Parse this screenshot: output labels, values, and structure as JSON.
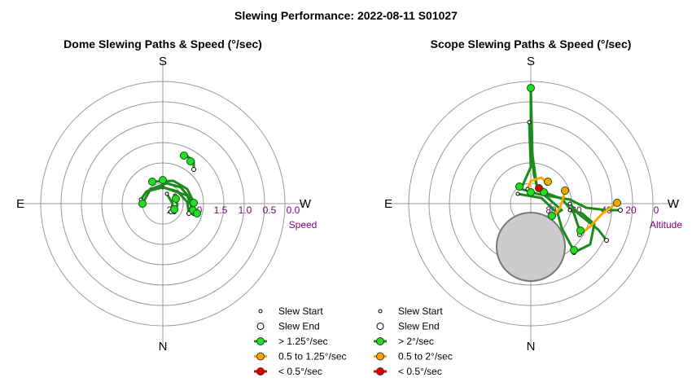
{
  "title": "Slewing Performance: 2022-08-11 S01027",
  "colors": {
    "fast": "#1a8a1a",
    "fast_marker": "#22dd22",
    "medium": "#ffa500",
    "slow": "#dd0000",
    "grid": "#999999",
    "radial_label": "#800080",
    "exclusion": "#cccccc"
  },
  "chart_data": [
    {
      "type": "polar-path",
      "subtitle": "Dome Slewing Paths & Speed (°/sec)",
      "directions": {
        "top": "S",
        "bottom": "N",
        "left": "E",
        "right": "W"
      },
      "radial_ticks": [
        "2",
        "2.0",
        "1.5",
        "1.0",
        "0.5",
        "0.0"
      ],
      "radial_axis_label": "Speed",
      "legend": [
        {
          "label": "Slew Start",
          "symbol": "start"
        },
        {
          "label": "Slew End",
          "symbol": "end"
        },
        {
          "label": "> 1.25°/sec",
          "symbol": "fast"
        },
        {
          "label": "0.5 to 1.25°/sec",
          "symbol": "medium"
        },
        {
          "label": "< 0.5°/sec",
          "symbol": "slow"
        }
      ],
      "paths": [
        {
          "speed": "fast",
          "points": [
            [
              200,
              230
            ],
            [
              230,
              240
            ],
            [
              238,
              262
            ]
          ]
        },
        {
          "speed": "fast",
          "points": [
            [
              175,
              250
            ],
            [
              185,
              232
            ],
            [
              205,
              225
            ],
            [
              222,
              230
            ],
            [
              235,
              245
            ],
            [
              240,
              260
            ]
          ]
        },
        {
          "speed": "fast",
          "points": [
            [
              187,
              223
            ],
            [
              213,
              222
            ],
            [
              230,
              232
            ],
            [
              238,
              248
            ],
            [
              238,
              262
            ]
          ]
        },
        {
          "speed": "fast",
          "points": [
            [
              173,
              245
            ],
            [
              180,
              235
            ],
            [
              200,
              230
            ],
            [
              218,
              235
            ],
            [
              230,
              248
            ],
            [
              232,
              262
            ]
          ]
        },
        {
          "speed": "fast",
          "points": [
            [
              228,
              190
            ],
            [
              238,
              198
            ],
            [
              238,
              208
            ]
          ]
        },
        {
          "speed": "fast",
          "points": [
            [
              215,
              240
            ],
            [
              218,
              252
            ],
            [
              214,
              260
            ]
          ]
        },
        {
          "speed": "fast",
          "points": [
            [
              205,
              238
            ],
            [
              212,
              250
            ],
            [
              210,
              260
            ]
          ]
        }
      ],
      "markers": [
        {
          "speed": "fast",
          "point": [
            175,
            250
          ]
        },
        {
          "speed": "fast",
          "point": [
            187,
            223
          ]
        },
        {
          "speed": "fast",
          "point": [
            200,
            221
          ]
        },
        {
          "speed": "fast",
          "point": [
            226,
            191
          ]
        },
        {
          "speed": "fast",
          "point": [
            234,
            198
          ]
        },
        {
          "speed": "fast",
          "point": [
            216,
            244
          ]
        },
        {
          "speed": "fast",
          "point": [
            238,
            249
          ]
        },
        {
          "speed": "fast",
          "point": [
            237,
            258
          ]
        },
        {
          "speed": "fast",
          "point": [
            214,
            257
          ]
        },
        {
          "speed": "fast",
          "point": [
            242,
            262
          ]
        }
      ]
    },
    {
      "type": "polar-path",
      "subtitle": "Scope Slewing Paths & Speed (°/sec)",
      "directions": {
        "top": "S",
        "bottom": "N",
        "left": "E",
        "right": "W"
      },
      "radial_ticks": [
        "80",
        "60",
        "40",
        "20",
        "0"
      ],
      "radial_axis_label": "Altitude",
      "legend": [
        {
          "label": "Slew Start",
          "symbol": "start"
        },
        {
          "label": "Slew End",
          "symbol": "end"
        },
        {
          "label": "> 2°/sec",
          "symbol": "fast"
        },
        {
          "label": "0.5 to 2°/sec",
          "symbol": "medium"
        },
        {
          "label": "< 0.5°/sec",
          "symbol": "slow"
        }
      ],
      "paths": [
        {
          "speed": "fast",
          "points": [
            [
              652,
              108
            ],
            [
              652,
              180
            ],
            [
              656,
              215
            ],
            [
              660,
              230
            ],
            [
              668,
              235
            ]
          ]
        },
        {
          "speed": "fast",
          "points": [
            [
              652,
              108
            ],
            [
              654,
              190
            ],
            [
              660,
              233
            ],
            [
              690,
              244
            ],
            [
              705,
              262
            ],
            [
              712,
              283
            ]
          ]
        },
        {
          "speed": "fast",
          "points": [
            [
              650,
              150
            ],
            [
              652,
              205
            ],
            [
              640,
              232
            ],
            [
              660,
              238
            ],
            [
              700,
              245
            ],
            [
              720,
              255
            ],
            [
              745,
              258
            ],
            [
              762,
              258
            ]
          ]
        },
        {
          "speed": "fast",
          "points": [
            [
              636,
              238
            ],
            [
              665,
              243
            ],
            [
              685,
              262
            ],
            [
              690,
              280
            ],
            [
              705,
              308
            ]
          ]
        },
        {
          "speed": "fast",
          "points": [
            [
              700,
              250
            ],
            [
              710,
              262
            ],
            [
              735,
              282
            ],
            [
              745,
              295
            ]
          ]
        },
        {
          "speed": "fast",
          "points": [
            [
              660,
              232
            ],
            [
              690,
              258
            ],
            [
              678,
              265
            ]
          ]
        },
        {
          "speed": "fast",
          "points": [
            [
              700,
              258
            ],
            [
              715,
              262
            ],
            [
              730,
              275
            ],
            [
              725,
              300
            ],
            [
              705,
              310
            ]
          ]
        },
        {
          "speed": "medium",
          "points": [
            [
              648,
              232
            ],
            [
              652,
              222
            ],
            [
              665,
              218
            ],
            [
              672,
              225
            ]
          ]
        },
        {
          "speed": "medium",
          "points": [
            [
              694,
              235
            ],
            [
              688,
              255
            ],
            [
              680,
              265
            ]
          ]
        },
        {
          "speed": "medium",
          "points": [
            [
              757,
              250
            ],
            [
              740,
              262
            ],
            [
              725,
              278
            ],
            [
              712,
              288
            ]
          ]
        }
      ],
      "markers": [
        {
          "speed": "fast",
          "point": [
            652,
            108
          ]
        },
        {
          "speed": "fast",
          "point": [
            638,
            229
          ]
        },
        {
          "speed": "fast",
          "point": [
            652,
            236
          ]
        },
        {
          "speed": "fast",
          "point": [
            668,
            236
          ]
        },
        {
          "speed": "fast",
          "point": [
            713,
            283
          ]
        },
        {
          "speed": "fast",
          "point": [
            678,
            265
          ]
        },
        {
          "speed": "fast",
          "point": [
            705,
            307
          ]
        },
        {
          "speed": "medium",
          "point": [
            673,
            223
          ]
        },
        {
          "speed": "medium",
          "point": [
            694,
            234
          ]
        },
        {
          "speed": "medium",
          "point": [
            758,
            249
          ]
        },
        {
          "speed": "slow",
          "point": [
            662,
            231
          ]
        }
      ]
    }
  ]
}
